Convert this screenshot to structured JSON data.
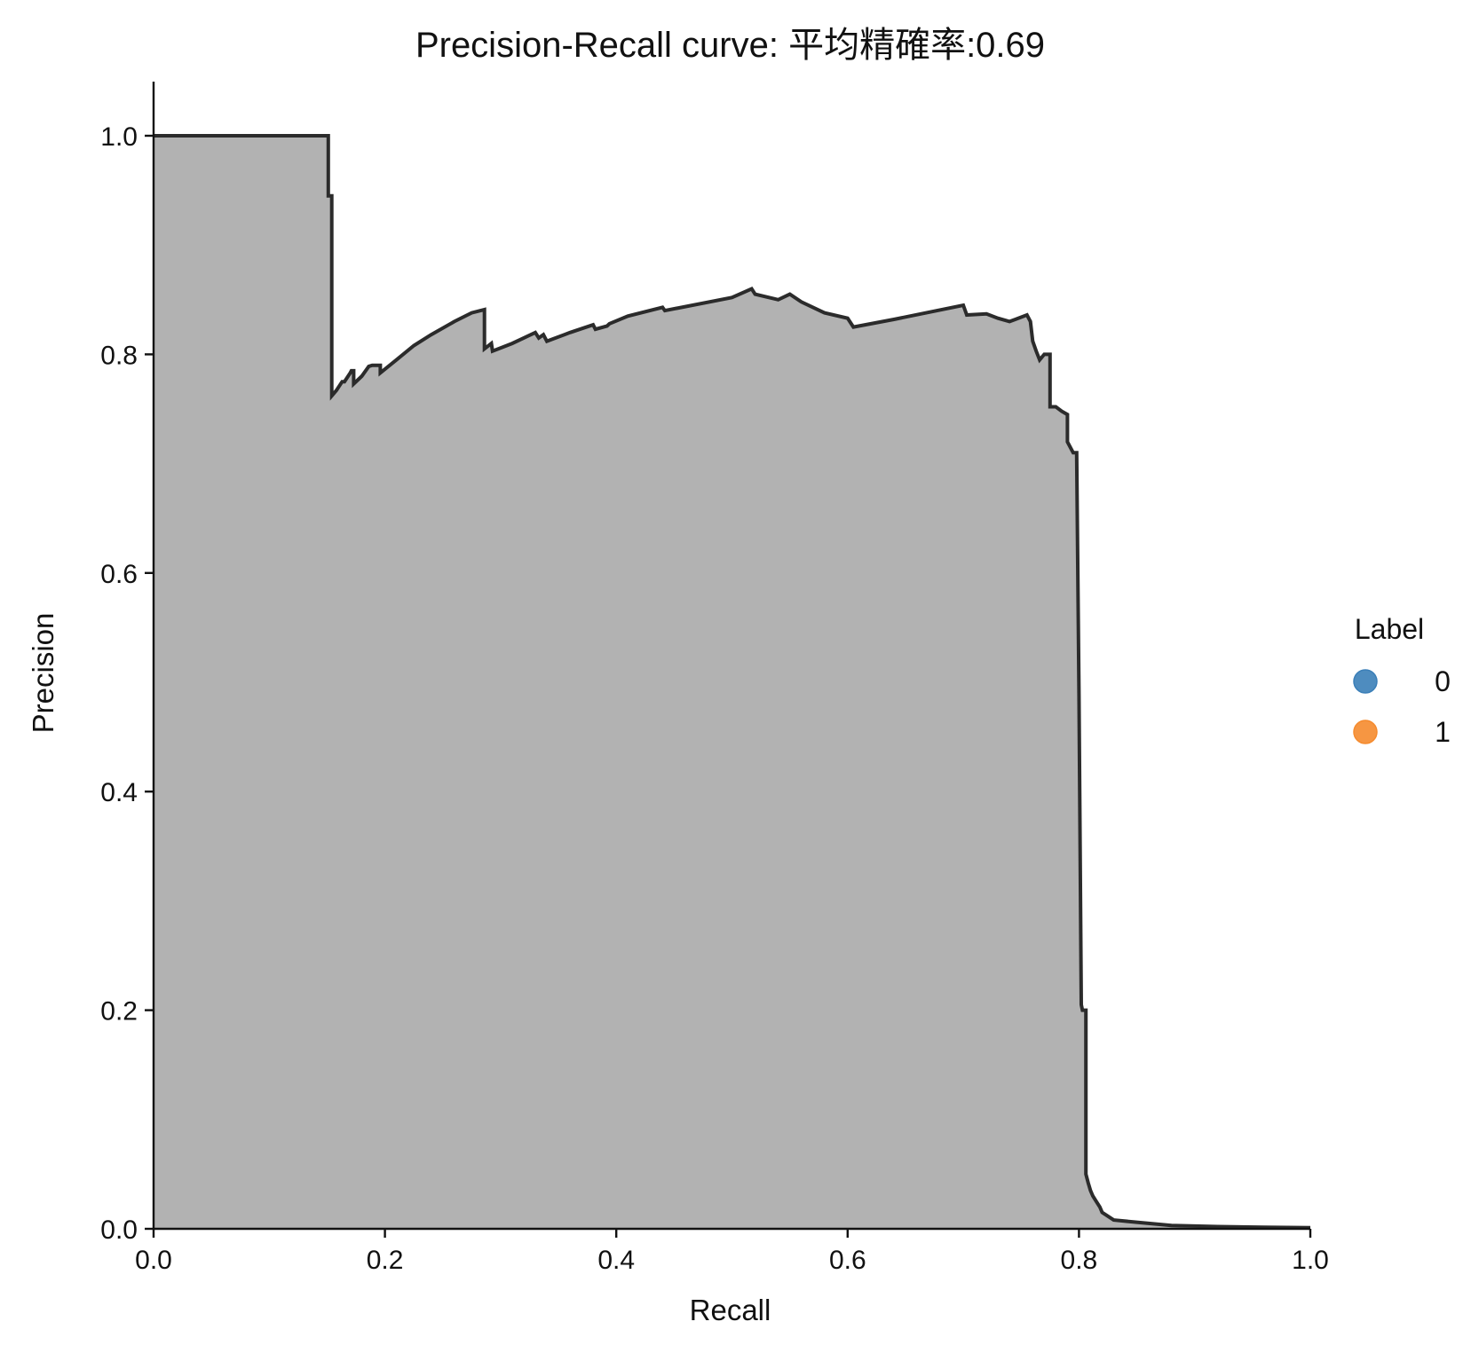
{
  "chart_data": {
    "type": "area",
    "title": "Precision-Recall curve: 平均精確率:0.69",
    "xlabel": "Recall",
    "ylabel": "Precision",
    "xlim": [
      0,
      1
    ],
    "ylim": [
      0,
      1.05
    ],
    "x_ticks": [
      "0.0",
      "0.2",
      "0.4",
      "0.6",
      "0.8",
      "1.0"
    ],
    "y_ticks": [
      "0.0",
      "0.2",
      "0.4",
      "0.6",
      "0.8",
      "1.0"
    ],
    "grid": false,
    "legend": {
      "title": "Label",
      "placement": "right",
      "entries": [
        {
          "label": "0",
          "color": "#3b7fb8"
        },
        {
          "label": "1",
          "color": "#f58b2e"
        }
      ]
    },
    "colors": {
      "fill": "#b2b2b2",
      "line": "#2b2b2b"
    },
    "series": [
      {
        "x": [
          0.0,
          0.151,
          0.151,
          0.154,
          0.154,
          0.158,
          0.163,
          0.165,
          0.17,
          0.171,
          0.173,
          0.173,
          0.18,
          0.186,
          0.189,
          0.196,
          0.196,
          0.21,
          0.225,
          0.24,
          0.26,
          0.275,
          0.286,
          0.286,
          0.292,
          0.293,
          0.31,
          0.33,
          0.333,
          0.337,
          0.34,
          0.36,
          0.38,
          0.382,
          0.392,
          0.394,
          0.41,
          0.41,
          0.44,
          0.442,
          0.5,
          0.517,
          0.52,
          0.54,
          0.55,
          0.56,
          0.57,
          0.58,
          0.6,
          0.605,
          0.64,
          0.7,
          0.703,
          0.72,
          0.73,
          0.74,
          0.755,
          0.758,
          0.76,
          0.763,
          0.766,
          0.77,
          0.775,
          0.775,
          0.78,
          0.785,
          0.79,
          0.79,
          0.795,
          0.798,
          0.8,
          0.802,
          0.803,
          0.806,
          0.806,
          0.808,
          0.81,
          0.812,
          0.815,
          0.818,
          0.82,
          0.83,
          0.85,
          0.88,
          0.92,
          0.96,
          1.0
        ],
        "y": [
          1.0,
          1.0,
          0.945,
          0.945,
          0.762,
          0.767,
          0.775,
          0.775,
          0.783,
          0.785,
          0.785,
          0.773,
          0.78,
          0.789,
          0.79,
          0.79,
          0.783,
          0.795,
          0.808,
          0.818,
          0.83,
          0.838,
          0.841,
          0.805,
          0.81,
          0.803,
          0.81,
          0.82,
          0.815,
          0.818,
          0.812,
          0.82,
          0.827,
          0.823,
          0.826,
          0.828,
          0.835,
          0.835,
          0.843,
          0.84,
          0.852,
          0.86,
          0.855,
          0.85,
          0.855,
          0.848,
          0.843,
          0.838,
          0.833,
          0.825,
          0.832,
          0.845,
          0.836,
          0.837,
          0.833,
          0.83,
          0.836,
          0.83,
          0.812,
          0.803,
          0.795,
          0.8,
          0.8,
          0.752,
          0.752,
          0.748,
          0.745,
          0.72,
          0.71,
          0.71,
          0.49,
          0.205,
          0.2,
          0.2,
          0.05,
          0.042,
          0.035,
          0.03,
          0.025,
          0.02,
          0.015,
          0.008,
          0.006,
          0.003,
          0.002,
          0.0015,
          0.001
        ]
      }
    ]
  }
}
